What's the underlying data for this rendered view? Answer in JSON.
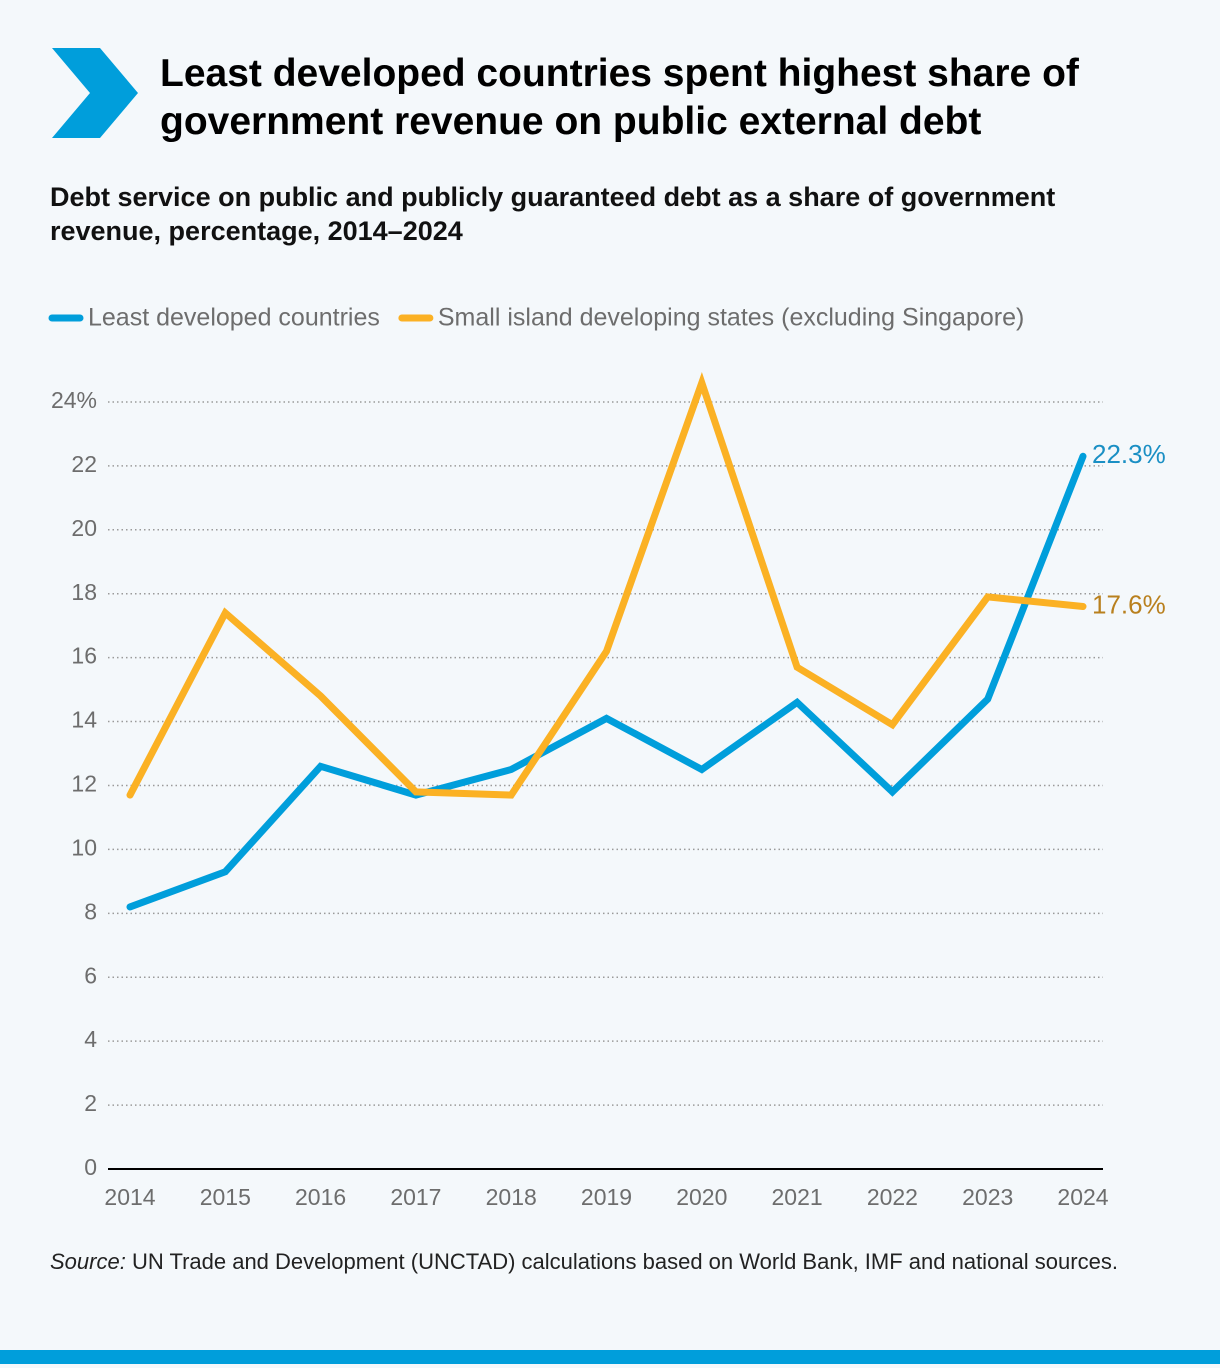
{
  "chart_data": {
    "type": "line",
    "title": "Least developed countries spent highest share of government revenue on public external debt",
    "subtitle": "Debt service on public and publicly guaranteed debt as a share of government revenue, percentage, 2014–2024",
    "categories": [
      "2014",
      "2015",
      "2016",
      "2017",
      "2018",
      "2019",
      "2020",
      "2021",
      "2022",
      "2023",
      "2024"
    ],
    "series": [
      {
        "name": "Least developed countries",
        "color": "#009edb",
        "values": [
          8.2,
          9.3,
          12.6,
          11.7,
          12.5,
          14.1,
          12.5,
          14.6,
          11.8,
          14.7,
          22.3
        ],
        "value_labels": [
          null,
          null,
          null,
          null,
          null,
          null,
          null,
          null,
          null,
          null,
          "22.3%"
        ]
      },
      {
        "name": "Small island developing states (excluding Singapore)",
        "color": "#fbb124",
        "values": [
          11.7,
          17.4,
          14.8,
          11.8,
          11.7,
          16.2,
          24.6,
          15.7,
          13.9,
          17.9,
          17.6
        ],
        "value_labels": [
          null,
          null,
          null,
          null,
          null,
          null,
          null,
          null,
          null,
          null,
          "17.6%"
        ]
      }
    ],
    "ylim": [
      0,
      25
    ],
    "yticks": [
      0,
      2,
      4,
      6,
      8,
      10,
      12,
      14,
      16,
      18,
      20,
      22,
      {
        "value": 24,
        "label": "24%"
      }
    ],
    "grid": true,
    "legend": "top",
    "source": {
      "prefix": "Source:",
      "text": "UN Trade and Development (UNCTAD) calculations based on World Bank, IMF and national sources."
    }
  }
}
